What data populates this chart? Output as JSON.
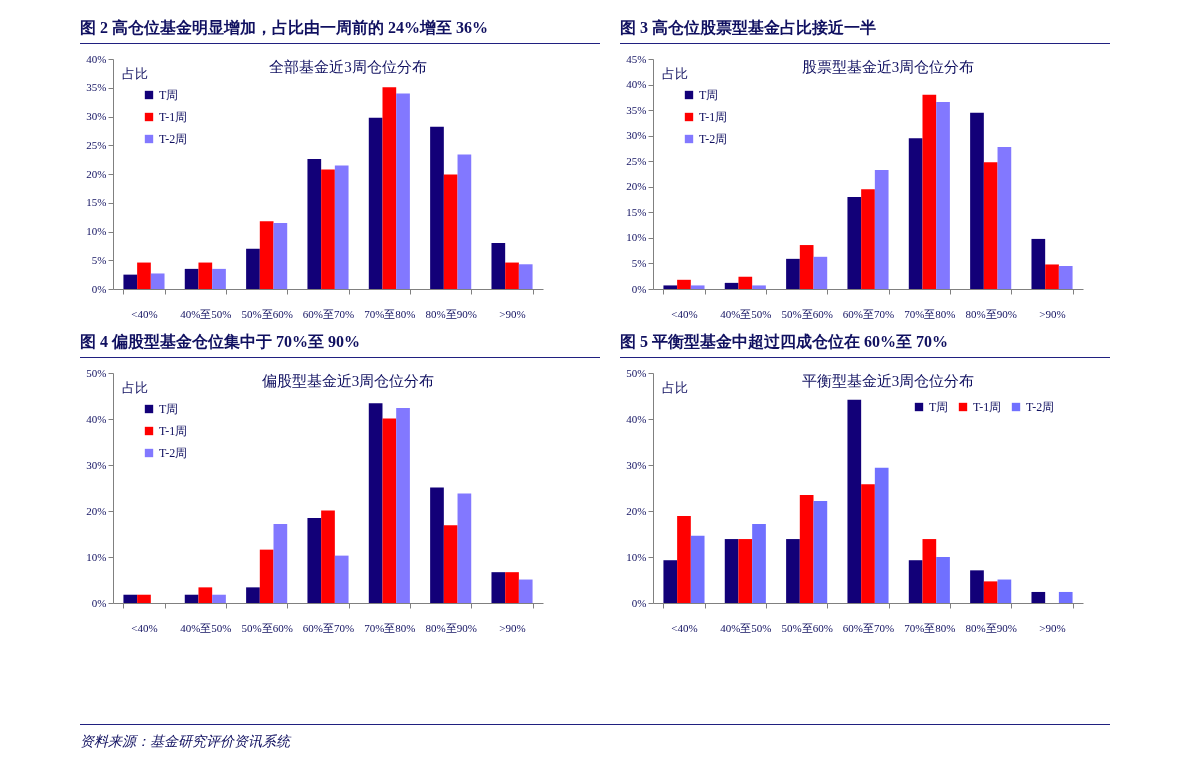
{
  "chart_data": [
    {
      "type": "bar",
      "title": "图 2  高仓位基金明显增加，占比由一周前的 24%增至 36%",
      "subtitle": "全部基金近3周仓位分布",
      "ylabel": "占比",
      "categories": [
        "<40%",
        "40%至50%",
        "50%至60%",
        "60%至70%",
        "70%至80%",
        "80%至90%",
        ">90%"
      ],
      "series": [
        {
          "name": "T周",
          "color": "#120078",
          "values": [
            2.5,
            3.5,
            7.0,
            22.6,
            29.8,
            28.2,
            8.0
          ]
        },
        {
          "name": "T-1周",
          "color": "#ff0000",
          "values": [
            4.6,
            4.6,
            11.8,
            20.8,
            35.1,
            19.9,
            4.6
          ]
        },
        {
          "name": "T-2周",
          "color": "#8278ff",
          "values": [
            2.7,
            3.5,
            11.5,
            21.5,
            34.0,
            23.4,
            4.3
          ]
        }
      ],
      "ylim": [
        0,
        40
      ],
      "yticks": [
        {
          "value": 0,
          "label": "0%"
        },
        {
          "value": 5,
          "label": "5%"
        },
        {
          "value": 10,
          "label": "10%"
        },
        {
          "value": 15,
          "label": "15%"
        },
        {
          "value": 20,
          "label": "20%"
        },
        {
          "value": 25,
          "label": "25%"
        },
        {
          "value": 30,
          "label": "30%"
        },
        {
          "value": 35,
          "label": "35%"
        },
        {
          "value": 40,
          "label": "40%"
        }
      ],
      "legend": "top left"
    },
    {
      "type": "bar",
      "title": "图 3  高仓位股票型基金占比接近一半",
      "subtitle": "股票型基金近3周仓位分布",
      "ylabel": "占比",
      "categories": [
        "<40%",
        "40%至50%",
        "50%至60%",
        "60%至70%",
        "70%至80%",
        "80%至90%",
        ">90%"
      ],
      "series": [
        {
          "name": "T周",
          "color": "#120078",
          "values": [
            0.7,
            1.2,
            5.9,
            18.0,
            29.5,
            34.5,
            9.8
          ]
        },
        {
          "name": "T-1周",
          "color": "#ff0000",
          "values": [
            1.8,
            2.4,
            8.6,
            19.5,
            38.0,
            24.8,
            4.8
          ]
        },
        {
          "name": "T-2周",
          "color": "#8278ff",
          "values": [
            0.7,
            0.7,
            6.3,
            23.3,
            36.6,
            27.8,
            4.5
          ]
        }
      ],
      "ylim": [
        0,
        45
      ],
      "yticks": [
        {
          "value": 0,
          "label": "0%"
        },
        {
          "value": 5,
          "label": "5%"
        },
        {
          "value": 10,
          "label": "10%"
        },
        {
          "value": 15,
          "label": "15%"
        },
        {
          "value": 20,
          "label": "20%"
        },
        {
          "value": 25,
          "label": "25%"
        },
        {
          "value": 30,
          "label": "30%"
        },
        {
          "value": 35,
          "label": "35%"
        },
        {
          "value": 40,
          "label": "40%"
        },
        {
          "value": 45,
          "label": "45%"
        }
      ],
      "legend": "top left"
    },
    {
      "type": "bar",
      "title": "图 4  偏股型基金仓位集中于 70%至 90%",
      "subtitle": "偏股型基金近3周仓位分布",
      "ylabel": "占比",
      "categories": [
        "<40%",
        "40%至50%",
        "50%至60%",
        "60%至70%",
        "70%至80%",
        "80%至90%",
        ">90%"
      ],
      "series": [
        {
          "name": "T周",
          "color": "#120078",
          "values": [
            1.8,
            1.8,
            3.4,
            18.5,
            43.4,
            25.1,
            6.7
          ]
        },
        {
          "name": "T-1周",
          "color": "#ff0000",
          "values": [
            1.8,
            3.4,
            11.6,
            20.1,
            40.1,
            16.9,
            6.7
          ]
        },
        {
          "name": "T-2周",
          "color": "#8278ff",
          "values": [
            0,
            1.8,
            17.2,
            10.3,
            42.4,
            23.8,
            5.1
          ]
        }
      ],
      "ylim": [
        0,
        50
      ],
      "yticks": [
        {
          "value": 0,
          "label": "0%"
        },
        {
          "value": 10,
          "label": "10%"
        },
        {
          "value": 20,
          "label": "20%"
        },
        {
          "value": 30,
          "label": "30%"
        },
        {
          "value": 40,
          "label": "40%"
        },
        {
          "value": 50,
          "label": "50%"
        }
      ],
      "legend": "top left"
    },
    {
      "type": "bar",
      "title": "图 5  平衡型基金中超过四成仓位在 60%至 70%",
      "subtitle": "平衡型基金近3周仓位分布",
      "ylabel": "占比",
      "categories": [
        "<40%",
        "40%至50%",
        "50%至60%",
        "60%至70%",
        "70%至80%",
        "80%至90%",
        ">90%"
      ],
      "series": [
        {
          "name": "T周",
          "color": "#120078",
          "values": [
            9.3,
            13.9,
            13.9,
            44.2,
            9.3,
            7.1,
            2.4
          ]
        },
        {
          "name": "T-1周",
          "color": "#ff0000",
          "values": [
            18.9,
            13.9,
            23.5,
            25.8,
            13.9,
            4.7,
            0
          ]
        },
        {
          "name": "T-2周",
          "color": "#7070ff",
          "values": [
            14.6,
            17.2,
            22.2,
            29.4,
            10.0,
            5.1,
            2.4
          ]
        }
      ],
      "ylim": [
        0,
        50
      ],
      "yticks": [
        {
          "value": 0,
          "label": "0%"
        },
        {
          "value": 10,
          "label": "10%"
        },
        {
          "value": 20,
          "label": "20%"
        },
        {
          "value": 30,
          "label": "30%"
        },
        {
          "value": 40,
          "label": "40%"
        },
        {
          "value": 50,
          "label": "50%"
        }
      ],
      "legend": "top right",
      "annotations": [
        "资料来源：基金研究评价资讯系统"
      ]
    }
  ]
}
